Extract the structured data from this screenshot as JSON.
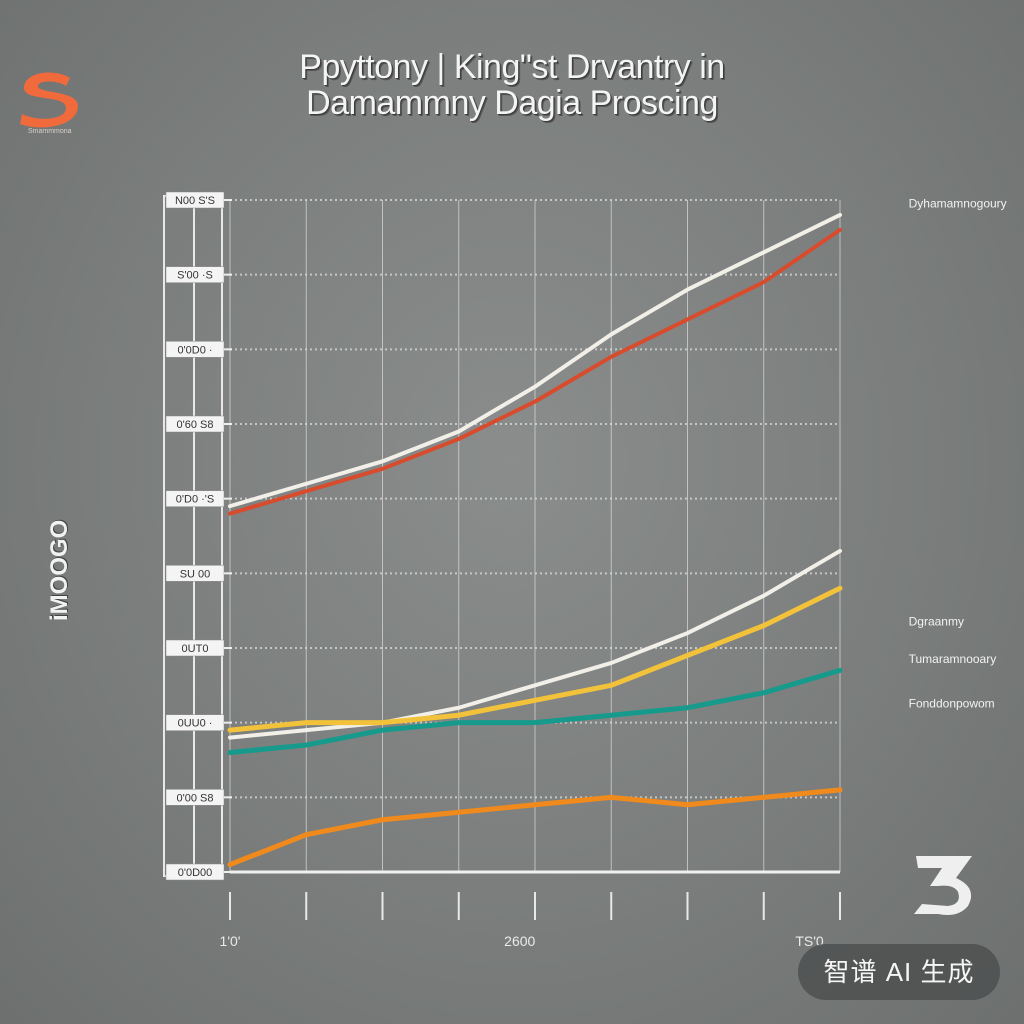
{
  "title": {
    "line1": "Ppyttony | King\"st Drvantry in",
    "line2": "Damammny Dagia Proscing"
  },
  "side_label": "iMOOGO",
  "badge": "智谱 AI 生成",
  "colors": {
    "background": "#7b7e7d",
    "grid": "#dcdcdc",
    "white_line": "#f1efe8",
    "red_line": "#d84b2c",
    "orange": "#f08a1c",
    "yellow": "#f2c23a",
    "green": "#2f9a3e",
    "teal": "#169a8c",
    "logo_orange": "#f06a3c"
  },
  "icons": {
    "top_left_logo": "s-logo-icon",
    "bottom_right_logo": "eight-logo-icon"
  },
  "chart_data": {
    "type": "line",
    "title": "Ppyttony | King\"st Drvantry in Damammny Dagia Proscing",
    "xlabel": "",
    "ylabel": "",
    "x": [
      0,
      1,
      2,
      3,
      4,
      5,
      6,
      7,
      8
    ],
    "xlim": [
      0,
      8
    ],
    "ylim": [
      0,
      9
    ],
    "y_tick_labels": [
      "0'0D00",
      "0'00 S8",
      "0UU0 ·",
      "0UT0",
      "SU 00",
      "0'D0 ·'S",
      "0'60 S8",
      "0'0D0 ·",
      "S'00 ·S",
      "N00 S'S"
    ],
    "x_tick_labels": [
      "1'0'",
      "2600",
      "TS'0"
    ],
    "grid": true,
    "series": [
      {
        "color": "white",
        "values": [
          4.9,
          5.2,
          5.5,
          5.9,
          6.5,
          7.2,
          7.8,
          8.3,
          8.8
        ]
      },
      {
        "color": "red",
        "values": [
          4.8,
          5.1,
          5.4,
          5.8,
          6.3,
          6.9,
          7.4,
          7.9,
          8.6
        ]
      },
      {
        "color": "white",
        "values": [
          1.8,
          1.9,
          2.0,
          2.2,
          2.5,
          2.8,
          3.2,
          3.7,
          4.3
        ]
      },
      {
        "color": "yellow",
        "values": [
          1.9,
          2.0,
          2.0,
          2.1,
          2.3,
          2.5,
          2.9,
          3.3,
          3.8
        ]
      },
      {
        "color": "teal",
        "values": [
          1.6,
          1.7,
          1.9,
          2.0,
          2.0,
          2.1,
          2.2,
          2.4,
          2.7
        ]
      },
      {
        "color": "orange",
        "values": [
          0.1,
          0.5,
          0.7,
          0.8,
          0.9,
          1.0,
          0.9,
          1.0,
          1.1
        ]
      }
    ],
    "annotations": [
      "Dyhamamnogoury",
      "Dgraanmy",
      "Tumaramnooary",
      "Fonddonpowom"
    ]
  }
}
